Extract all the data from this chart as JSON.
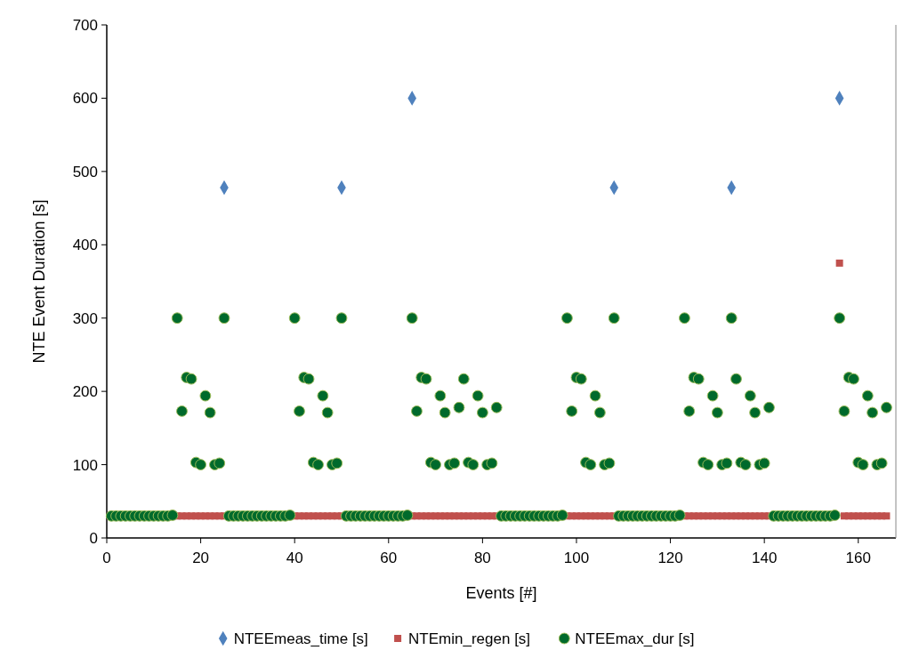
{
  "chart_data": {
    "type": "scatter",
    "xlabel": "Events [#]",
    "ylabel": "NTE Event Duration [s]",
    "xlim": [
      0,
      168
    ],
    "ylim": [
      0,
      700
    ],
    "xticks": [
      0,
      20,
      40,
      60,
      80,
      100,
      120,
      140,
      160
    ],
    "yticks": [
      0,
      100,
      200,
      300,
      400,
      500,
      600,
      700
    ],
    "grid": false,
    "legend": "bottom",
    "x": [
      1,
      2,
      3,
      4,
      5,
      6,
      7,
      8,
      9,
      10,
      11,
      12,
      13,
      14,
      15,
      16,
      17,
      18,
      19,
      20,
      21,
      22,
      23,
      24,
      25,
      26,
      27,
      28,
      29,
      30,
      31,
      32,
      33,
      34,
      35,
      36,
      37,
      38,
      39,
      40,
      41,
      42,
      43,
      44,
      45,
      46,
      47,
      48,
      49,
      50,
      51,
      52,
      53,
      54,
      55,
      56,
      57,
      58,
      59,
      60,
      61,
      62,
      63,
      64,
      65,
      66,
      67,
      68,
      69,
      70,
      71,
      72,
      73,
      74,
      75,
      76,
      77,
      78,
      79,
      80,
      81,
      82,
      83,
      84,
      85,
      86,
      87,
      88,
      89,
      90,
      91,
      92,
      93,
      94,
      95,
      96,
      97,
      98,
      99,
      100,
      101,
      102,
      103,
      104,
      105,
      106,
      107,
      108,
      109,
      110,
      111,
      112,
      113,
      114,
      115,
      116,
      117,
      118,
      119,
      120,
      121,
      122,
      123,
      124,
      125,
      126,
      127,
      128,
      129,
      130,
      131,
      132,
      133,
      134,
      135,
      136,
      137,
      138,
      139,
      140,
      141,
      142,
      143,
      144,
      145,
      146,
      147,
      148,
      149,
      150,
      151,
      152,
      153,
      154,
      155,
      156,
      157,
      158,
      159,
      160,
      161,
      162,
      163,
      164,
      165,
      166
    ],
    "series": [
      {
        "name": "NTEEmeas_time [s]",
        "color": "#4f81bd",
        "marker": "diamond",
        "x": [
          25,
          50,
          65,
          108,
          133,
          156
        ],
        "values": [
          478,
          478,
          600,
          478,
          478,
          600
        ]
      },
      {
        "name": "NTEmin_regen [s]",
        "color": "#c0504d",
        "marker": "square",
        "x": [
          15,
          16,
          17,
          18,
          19,
          20,
          21,
          22,
          23,
          24,
          25,
          40,
          41,
          42,
          43,
          44,
          45,
          46,
          47,
          48,
          49,
          50,
          65,
          66,
          67,
          68,
          69,
          70,
          71,
          72,
          73,
          74,
          75,
          76,
          77,
          78,
          79,
          80,
          81,
          82,
          83,
          98,
          99,
          100,
          101,
          102,
          103,
          104,
          105,
          106,
          107,
          108,
          123,
          124,
          125,
          126,
          127,
          128,
          129,
          130,
          131,
          132,
          133,
          134,
          135,
          136,
          137,
          138,
          139,
          140,
          141,
          156,
          157,
          158,
          159,
          160,
          161,
          162,
          163,
          164,
          165,
          166
        ],
        "values": [
          30,
          30,
          30,
          30,
          30,
          30,
          30,
          30,
          30,
          30,
          30,
          30,
          30,
          30,
          30,
          30,
          30,
          30,
          30,
          30,
          30,
          30,
          30,
          30,
          30,
          30,
          30,
          30,
          30,
          30,
          30,
          30,
          30,
          30,
          30,
          30,
          30,
          30,
          30,
          30,
          30,
          30,
          30,
          30,
          30,
          30,
          30,
          30,
          30,
          30,
          30,
          30,
          30,
          30,
          30,
          30,
          30,
          30,
          30,
          30,
          30,
          30,
          30,
          30,
          30,
          30,
          30,
          30,
          30,
          30,
          30,
          375,
          30,
          30,
          30,
          30,
          30,
          30,
          30,
          30,
          30,
          30
        ]
      },
      {
        "name": "NTEEmax_dur [s]",
        "color": "#006a2c",
        "marker": "circle",
        "values": [
          30,
          30,
          30,
          30,
          30,
          30,
          30,
          30,
          30,
          30,
          30,
          30,
          30,
          31,
          300,
          173,
          219,
          217,
          103,
          100,
          194,
          171,
          100,
          102,
          300,
          30,
          30,
          30,
          30,
          30,
          30,
          30,
          30,
          30,
          30,
          30,
          30,
          30,
          31,
          300,
          173,
          219,
          217,
          103,
          100,
          194,
          171,
          100,
          102,
          300,
          30,
          30,
          30,
          30,
          30,
          30,
          30,
          30,
          30,
          30,
          30,
          30,
          30,
          31,
          300,
          173,
          219,
          217,
          103,
          100,
          194,
          171,
          100,
          102,
          178,
          217,
          103,
          100,
          194,
          171,
          100,
          102,
          178,
          30,
          30,
          30,
          30,
          30,
          30,
          30,
          30,
          30,
          30,
          30,
          30,
          30,
          31,
          300,
          173,
          219,
          217,
          103,
          100,
          194,
          171,
          100,
          102,
          300,
          30,
          30,
          30,
          30,
          30,
          30,
          30,
          30,
          30,
          30,
          30,
          30,
          30,
          31,
          300,
          173,
          219,
          217,
          103,
          100,
          194,
          171,
          100,
          102,
          300,
          217,
          103,
          100,
          194,
          171,
          100,
          102,
          178,
          30,
          30,
          30,
          30,
          30,
          30,
          30,
          30,
          30,
          30,
          30,
          30,
          30,
          31,
          300,
          173,
          219,
          217,
          103,
          100,
          194,
          171,
          100,
          102,
          178
        ]
      }
    ]
  }
}
